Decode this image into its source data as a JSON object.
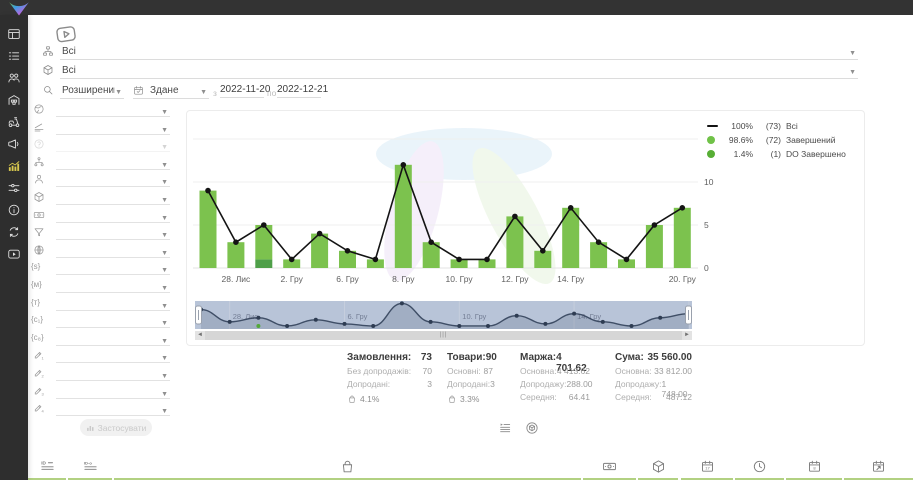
{
  "topbar": {
    "logo": "brand-logo"
  },
  "sidebar": {
    "items": [
      {
        "icon": "dashboard",
        "active": false
      },
      {
        "icon": "orders-list",
        "active": false
      },
      {
        "icon": "customers",
        "active": false
      },
      {
        "icon": "warehouse",
        "active": false
      },
      {
        "icon": "delivery-scooter",
        "active": false
      },
      {
        "icon": "megaphone",
        "active": false
      },
      {
        "icon": "analytics",
        "active": true
      },
      {
        "icon": "settings-sliders",
        "active": false
      },
      {
        "icon": "info",
        "active": false
      },
      {
        "icon": "sync",
        "active": false
      },
      {
        "icon": "video-tutorials",
        "active": false
      }
    ]
  },
  "toolbar": {
    "status_filter": {
      "icon": "sitemap",
      "value": "Всі"
    },
    "product_filter": {
      "icon": "cube3d",
      "value": "Всі"
    },
    "search_mode": {
      "icon": "magnifier",
      "value": "Розширений"
    },
    "date_type": {
      "icon": "calendar-check",
      "value": "Здане"
    },
    "date_from_label": "з",
    "date_from": "2022-11-20",
    "date_to_label": "по",
    "date_to": "2022-12-21"
  },
  "filter_panel": {
    "rows": [
      {
        "icon": "globe-earth"
      },
      {
        "icon": "ramp"
      },
      {
        "icon": "help",
        "disabled": true
      },
      {
        "icon": "hierarchy"
      },
      {
        "icon": "person"
      },
      {
        "icon": "cube3d"
      },
      {
        "icon": "banknote"
      },
      {
        "icon": "funnel"
      },
      {
        "icon": "globe-grid"
      },
      {
        "glyph": "{s}",
        "icon": "utm-source"
      },
      {
        "glyph": "{м}",
        "icon": "utm-medium"
      },
      {
        "glyph": "{т}",
        "icon": "utm-term"
      },
      {
        "glyph": "{с₁}",
        "icon": "utm-content"
      },
      {
        "glyph": "{с₈}",
        "icon": "utm-campaign"
      },
      {
        "icon": "pencil",
        "sub": "1"
      },
      {
        "icon": "pencil",
        "sub": "2"
      },
      {
        "icon": "pencil",
        "sub": "3"
      },
      {
        "icon": "pencil",
        "sub": "4"
      }
    ],
    "apply_label": "Застосувати"
  },
  "chart_data": {
    "type": "bar",
    "stacked": true,
    "x_labels": [
      "",
      "28. Лис",
      "",
      "2. Гру",
      "",
      "6. Гру",
      "",
      "8. Гру",
      "",
      "10. Гру",
      "",
      "12. Гру",
      "",
      "14. Гру",
      "",
      "",
      "",
      "20. Гру"
    ],
    "series": [
      {
        "name": "Всі",
        "type": "line",
        "color": "#141414",
        "values": [
          9,
          3,
          5,
          1,
          4,
          2,
          1,
          12,
          3,
          1,
          1,
          6,
          2,
          7,
          3,
          1,
          5,
          7
        ]
      },
      {
        "name": "Завершений",
        "type": "bar",
        "color": "#7cc24e",
        "values": [
          9,
          3,
          4,
          1,
          4,
          2,
          1,
          12,
          3,
          1,
          1,
          6,
          2,
          7,
          3,
          1,
          5,
          7
        ]
      },
      {
        "name": "DO Завершено",
        "type": "bar",
        "color": "#4f9f49",
        "values": [
          0,
          0,
          1,
          0,
          0,
          0,
          0,
          0,
          0,
          0,
          0,
          0,
          0,
          0,
          0,
          0,
          0,
          0
        ]
      }
    ],
    "ylim": [
      0,
      15
    ],
    "y_ticks": [
      0,
      5,
      10
    ],
    "grid": true,
    "legend_position": "top-right",
    "legend": [
      {
        "swatch": "line",
        "color": "#141414",
        "pct": "100%",
        "count": "(73)",
        "label": "Всі"
      },
      {
        "swatch": "dot",
        "color": "#70c248",
        "pct": "98.6%",
        "count": "(72)",
        "label": "Завершений"
      },
      {
        "swatch": "dot",
        "color": "#57ae35",
        "pct": "1.4%",
        "count": "(1)",
        "label": "DO Завершено"
      }
    ],
    "navigator": {
      "labels": [
        "28. Лис",
        "6. Гру",
        "10. Гру",
        "14. Гру",
        "20. Гру"
      ],
      "label_positions": [
        1,
        5,
        9,
        13,
        17
      ]
    }
  },
  "stats": {
    "columns": [
      {
        "title": "Замовлення:",
        "value": "73",
        "rows": [
          {
            "label": "Без допродажів:",
            "value": "70"
          },
          {
            "label": "Допродані:",
            "value": "3"
          }
        ],
        "percent": "4.1%"
      },
      {
        "title": "Товари:",
        "value": "90",
        "rows": [
          {
            "label": "Основні:",
            "value": "87"
          },
          {
            "label": "Допродані:",
            "value": "3"
          }
        ],
        "percent": "3.3%"
      },
      {
        "title": "Маржа:",
        "value": "4 701.62",
        "rows": [
          {
            "label": "Основна:",
            "value": "4 413.62"
          },
          {
            "label": "Допродажу:",
            "value": "288.00"
          },
          {
            "label": "Середня:",
            "value": "64.41"
          }
        ]
      },
      {
        "title": "Сума:",
        "value": "35 560.00",
        "rows": [
          {
            "label": "Основна:",
            "value": "33 812.00"
          },
          {
            "label": "Допродажу:",
            "value": "1 748.00"
          },
          {
            "label": "Середня:",
            "value": "487.12"
          }
        ]
      }
    ]
  },
  "view_toggles": [
    {
      "icon": "list-details"
    },
    {
      "icon": "cube-circle"
    }
  ],
  "bottom_table": {
    "column_icons": [
      "id-lines",
      "id-o-lines",
      "bag",
      "banknote",
      "cube3d",
      "calendar-17",
      "clock",
      "calendar-8",
      "calendar-arrow"
    ]
  }
}
